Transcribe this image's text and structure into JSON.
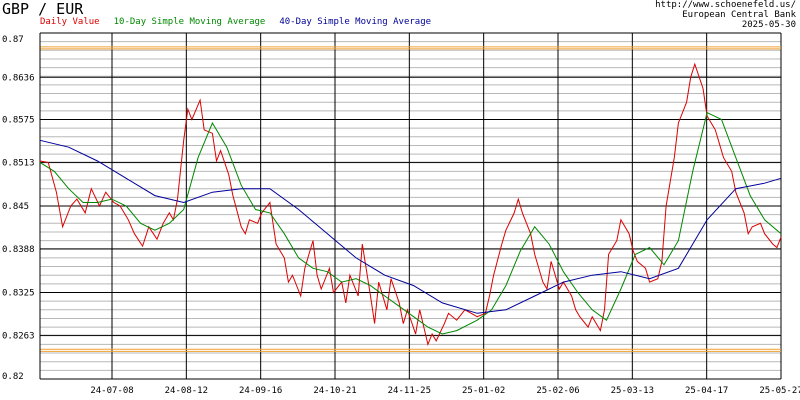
{
  "header": {
    "title": "GBP / EUR",
    "source_url": "http://www.schoenefeld.us/",
    "source_name": "European Central Bank",
    "date": "2025-05-30"
  },
  "chart_data": {
    "type": "line",
    "title": "GBP / EUR",
    "xlabel": "",
    "ylabel": "",
    "ylim": [
      0.82,
      0.87
    ],
    "yticks": [
      0.87,
      0.8636,
      0.8575,
      0.8513,
      0.845,
      0.8388,
      0.8325,
      0.8263,
      0.82
    ],
    "xticks": [
      "24-07-08",
      "24-08-12",
      "24-09-16",
      "24-10-21",
      "24-11-25",
      "25-01-02",
      "25-02-06",
      "25-03-13",
      "25-04-17",
      "25-05-27"
    ],
    "x_range": [
      "2024-06-03",
      "2025-05-30"
    ],
    "grid": true,
    "legend_position": "top-left",
    "reference_lines": [
      {
        "values": [
          0.868,
          0.8677
        ],
        "color": "#f0a030"
      },
      {
        "values": [
          0.8243,
          0.824
        ],
        "color": "#f0a030"
      }
    ],
    "series": [
      {
        "name": "Daily Value",
        "color": "#dd0000",
        "points": [
          [
            "2024-06-03",
            0.8515
          ],
          [
            "2024-06-07",
            0.8513
          ],
          [
            "2024-06-11",
            0.847
          ],
          [
            "2024-06-14",
            0.842
          ],
          [
            "2024-06-18",
            0.845
          ],
          [
            "2024-06-21",
            0.846
          ],
          [
            "2024-06-25",
            0.844
          ],
          [
            "2024-06-28",
            0.8475
          ],
          [
            "2024-07-02",
            0.845
          ],
          [
            "2024-07-05",
            0.847
          ],
          [
            "2024-07-09",
            0.8455
          ],
          [
            "2024-07-12",
            0.845
          ],
          [
            "2024-07-16",
            0.843
          ],
          [
            "2024-07-19",
            0.841
          ],
          [
            "2024-07-23",
            0.8392
          ],
          [
            "2024-07-26",
            0.842
          ],
          [
            "2024-07-30",
            0.8402
          ],
          [
            "2024-08-02",
            0.8425
          ],
          [
            "2024-08-05",
            0.844
          ],
          [
            "2024-08-07",
            0.843
          ],
          [
            "2024-08-09",
            0.846
          ],
          [
            "2024-08-12",
            0.8545
          ],
          [
            "2024-08-14",
            0.859
          ],
          [
            "2024-08-16",
            0.8575
          ],
          [
            "2024-08-20",
            0.8603
          ],
          [
            "2024-08-22",
            0.856
          ],
          [
            "2024-08-26",
            0.8555
          ],
          [
            "2024-08-28",
            0.8515
          ],
          [
            "2024-08-30",
            0.853
          ],
          [
            "2024-09-03",
            0.8495
          ],
          [
            "2024-09-05",
            0.8465
          ],
          [
            "2024-09-09",
            0.842
          ],
          [
            "2024-09-11",
            0.841
          ],
          [
            "2024-09-13",
            0.843
          ],
          [
            "2024-09-17",
            0.8425
          ],
          [
            "2024-09-19",
            0.844
          ],
          [
            "2024-09-23",
            0.8455
          ],
          [
            "2024-09-26",
            0.8395
          ],
          [
            "2024-09-30",
            0.8375
          ],
          [
            "2024-10-02",
            0.834
          ],
          [
            "2024-10-04",
            0.835
          ],
          [
            "2024-10-08",
            0.832
          ],
          [
            "2024-10-10",
            0.836
          ],
          [
            "2024-10-14",
            0.84
          ],
          [
            "2024-10-16",
            0.835
          ],
          [
            "2024-10-18",
            0.833
          ],
          [
            "2024-10-22",
            0.836
          ],
          [
            "2024-10-24",
            0.8325
          ],
          [
            "2024-10-28",
            0.834
          ],
          [
            "2024-10-30",
            0.831
          ],
          [
            "2024-11-01",
            0.835
          ],
          [
            "2024-11-05",
            0.832
          ],
          [
            "2024-11-07",
            0.8395
          ],
          [
            "2024-11-11",
            0.832
          ],
          [
            "2024-11-13",
            0.828
          ],
          [
            "2024-11-15",
            0.834
          ],
          [
            "2024-11-19",
            0.83
          ],
          [
            "2024-11-21",
            0.8345
          ],
          [
            "2024-11-25",
            0.831
          ],
          [
            "2024-11-27",
            0.828
          ],
          [
            "2024-11-29",
            0.83
          ],
          [
            "2024-12-03",
            0.8265
          ],
          [
            "2024-12-05",
            0.83
          ],
          [
            "2024-12-09",
            0.825
          ],
          [
            "2024-12-11",
            0.8265
          ],
          [
            "2024-12-13",
            0.8255
          ],
          [
            "2024-12-17",
            0.828
          ],
          [
            "2024-12-19",
            0.8295
          ],
          [
            "2024-12-23",
            0.8285
          ],
          [
            "2024-12-27",
            0.83
          ],
          [
            "2025-01-02",
            0.829
          ],
          [
            "2025-01-06",
            0.8295
          ],
          [
            "2025-01-08",
            0.832
          ],
          [
            "2025-01-10",
            0.835
          ],
          [
            "2025-01-14",
            0.8395
          ],
          [
            "2025-01-16",
            0.8415
          ],
          [
            "2025-01-20",
            0.844
          ],
          [
            "2025-01-22",
            0.846
          ],
          [
            "2025-01-24",
            0.844
          ],
          [
            "2025-01-28",
            0.841
          ],
          [
            "2025-01-30",
            0.838
          ],
          [
            "2025-02-03",
            0.834
          ],
          [
            "2025-02-05",
            0.833
          ],
          [
            "2025-02-07",
            0.837
          ],
          [
            "2025-02-11",
            0.833
          ],
          [
            "2025-02-13",
            0.834
          ],
          [
            "2025-02-17",
            0.832
          ],
          [
            "2025-02-19",
            0.83
          ],
          [
            "2025-02-21",
            0.829
          ],
          [
            "2025-02-25",
            0.8275
          ],
          [
            "2025-02-27",
            0.829
          ],
          [
            "2025-03-03",
            0.827
          ],
          [
            "2025-03-05",
            0.83
          ],
          [
            "2025-03-07",
            0.838
          ],
          [
            "2025-03-11",
            0.84
          ],
          [
            "2025-03-13",
            0.843
          ],
          [
            "2025-03-17",
            0.841
          ],
          [
            "2025-03-19",
            0.8385
          ],
          [
            "2025-03-21",
            0.837
          ],
          [
            "2025-03-25",
            0.836
          ],
          [
            "2025-03-27",
            0.834
          ],
          [
            "2025-03-31",
            0.8345
          ],
          [
            "2025-04-02",
            0.837
          ],
          [
            "2025-04-04",
            0.845
          ],
          [
            "2025-04-08",
            0.852
          ],
          [
            "2025-04-10",
            0.857
          ],
          [
            "2025-04-14",
            0.86
          ],
          [
            "2025-04-16",
            0.8636
          ],
          [
            "2025-04-18",
            0.8655
          ],
          [
            "2025-04-22",
            0.862
          ],
          [
            "2025-04-24",
            0.858
          ],
          [
            "2025-04-28",
            0.856
          ],
          [
            "2025-04-30",
            0.854
          ],
          [
            "2025-05-02",
            0.852
          ],
          [
            "2025-05-06",
            0.85
          ],
          [
            "2025-05-08",
            0.847
          ],
          [
            "2025-05-12",
            0.844
          ],
          [
            "2025-05-14",
            0.841
          ],
          [
            "2025-05-16",
            0.842
          ],
          [
            "2025-05-20",
            0.8425
          ],
          [
            "2025-05-22",
            0.841
          ],
          [
            "2025-05-26",
            0.8395
          ],
          [
            "2025-05-28",
            0.839
          ],
          [
            "2025-05-30",
            0.8405
          ]
        ]
      },
      {
        "name": "10-Day Simple Moving Average",
        "color": "#008800",
        "points": [
          [
            "2024-06-03",
            0.8513
          ],
          [
            "2024-06-10",
            0.85
          ],
          [
            "2024-06-17",
            0.8475
          ],
          [
            "2024-06-24",
            0.8455
          ],
          [
            "2024-07-01",
            0.8455
          ],
          [
            "2024-07-08",
            0.846
          ],
          [
            "2024-07-15",
            0.845
          ],
          [
            "2024-07-22",
            0.8425
          ],
          [
            "2024-07-29",
            0.8415
          ],
          [
            "2024-08-05",
            0.8425
          ],
          [
            "2024-08-12",
            0.8445
          ],
          [
            "2024-08-19",
            0.852
          ],
          [
            "2024-08-26",
            0.857
          ],
          [
            "2024-09-02",
            0.8535
          ],
          [
            "2024-09-09",
            0.848
          ],
          [
            "2024-09-16",
            0.8445
          ],
          [
            "2024-09-23",
            0.844
          ],
          [
            "2024-09-30",
            0.841
          ],
          [
            "2024-10-07",
            0.8375
          ],
          [
            "2024-10-14",
            0.836
          ],
          [
            "2024-10-21",
            0.8355
          ],
          [
            "2024-10-28",
            0.834
          ],
          [
            "2024-11-04",
            0.8345
          ],
          [
            "2024-11-11",
            0.8335
          ],
          [
            "2024-11-18",
            0.832
          ],
          [
            "2024-11-25",
            0.8305
          ],
          [
            "2024-12-02",
            0.829
          ],
          [
            "2024-12-09",
            0.8275
          ],
          [
            "2024-12-16",
            0.8265
          ],
          [
            "2024-12-23",
            0.827
          ],
          [
            "2025-01-02",
            0.8285
          ],
          [
            "2025-01-09",
            0.83
          ],
          [
            "2025-01-16",
            0.8335
          ],
          [
            "2025-01-23",
            0.8385
          ],
          [
            "2025-01-30",
            0.842
          ],
          [
            "2025-02-06",
            0.8395
          ],
          [
            "2025-02-13",
            0.8355
          ],
          [
            "2025-02-20",
            0.8325
          ],
          [
            "2025-02-27",
            0.83
          ],
          [
            "2025-03-06",
            0.8285
          ],
          [
            "2025-03-13",
            0.833
          ],
          [
            "2025-03-20",
            0.838
          ],
          [
            "2025-03-27",
            0.839
          ],
          [
            "2025-04-03",
            0.8365
          ],
          [
            "2025-04-10",
            0.84
          ],
          [
            "2025-04-17",
            0.85
          ],
          [
            "2025-04-24",
            0.8585
          ],
          [
            "2025-05-01",
            0.8575
          ],
          [
            "2025-05-08",
            0.852
          ],
          [
            "2025-05-15",
            0.8465
          ],
          [
            "2025-05-22",
            0.843
          ],
          [
            "2025-05-30",
            0.841
          ]
        ]
      },
      {
        "name": "40-Day Simple Moving Average",
        "color": "#000099",
        "points": [
          [
            "2024-06-03",
            0.8545
          ],
          [
            "2024-06-17",
            0.8535
          ],
          [
            "2024-07-01",
            0.8515
          ],
          [
            "2024-07-15",
            0.849
          ],
          [
            "2024-07-29",
            0.8465
          ],
          [
            "2024-08-12",
            0.8455
          ],
          [
            "2024-08-26",
            0.847
          ],
          [
            "2024-09-09",
            0.8475
          ],
          [
            "2024-09-23",
            0.8475
          ],
          [
            "2024-10-07",
            0.8445
          ],
          [
            "2024-10-21",
            0.841
          ],
          [
            "2024-11-04",
            0.8375
          ],
          [
            "2024-11-18",
            0.835
          ],
          [
            "2024-12-02",
            0.8335
          ],
          [
            "2024-12-16",
            0.831
          ],
          [
            "2025-01-02",
            0.8295
          ],
          [
            "2025-01-16",
            0.83
          ],
          [
            "2025-01-30",
            0.832
          ],
          [
            "2025-02-13",
            0.834
          ],
          [
            "2025-02-27",
            0.835
          ],
          [
            "2025-03-13",
            0.8355
          ],
          [
            "2025-03-27",
            0.8345
          ],
          [
            "2025-04-10",
            0.836
          ],
          [
            "2025-04-24",
            0.843
          ],
          [
            "2025-05-08",
            0.8475
          ],
          [
            "2025-05-22",
            0.8483
          ],
          [
            "2025-05-30",
            0.849
          ]
        ]
      }
    ]
  }
}
